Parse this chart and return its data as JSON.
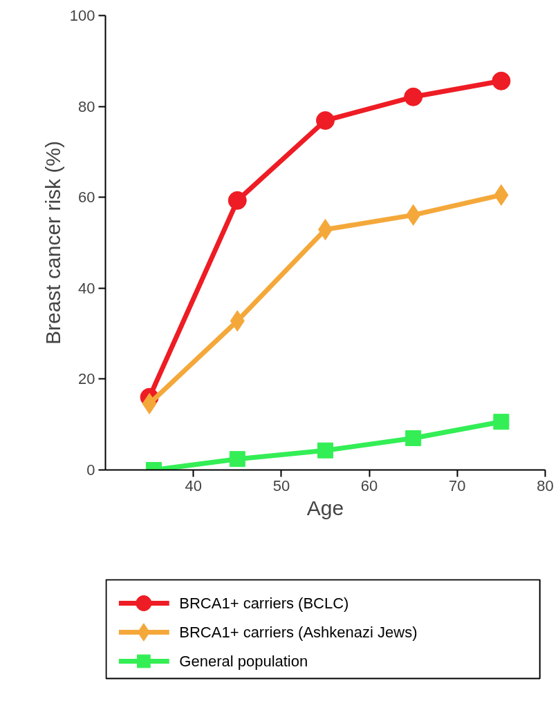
{
  "chart_data": {
    "type": "line",
    "xlabel": "Age",
    "ylabel": "Breast cancer risk (%)",
    "xlim": [
      30,
      80
    ],
    "xticks": [
      40,
      50,
      60,
      70,
      80
    ],
    "ylim": [
      0,
      100
    ],
    "yticks": [
      0,
      20,
      40,
      60,
      80,
      100
    ],
    "grid": false,
    "legend": "bottom",
    "line_style": "solid",
    "series": [
      {
        "name": "BRCA1+ carriers (BCLC)",
        "color": "#ee1c24",
        "marker": "circle",
        "x": [
          35,
          45,
          55,
          65,
          75
        ],
        "values": [
          16,
          59.3,
          76.9,
          82.1,
          85.6
        ]
      },
      {
        "name": "BRCA1+ carriers (Ashkenazi Jews)",
        "color": "#f4a83a",
        "marker": "diamond",
        "x": [
          35,
          45,
          55,
          65,
          75
        ],
        "values": [
          14.6,
          32.8,
          52.9,
          56.1,
          60.5
        ]
      },
      {
        "name": "General population",
        "color": "#33ee55",
        "marker": "square",
        "x": [
          35.5,
          45,
          55,
          65,
          75
        ],
        "values": [
          0,
          2.4,
          4.3,
          7.0,
          10.6
        ]
      }
    ]
  }
}
